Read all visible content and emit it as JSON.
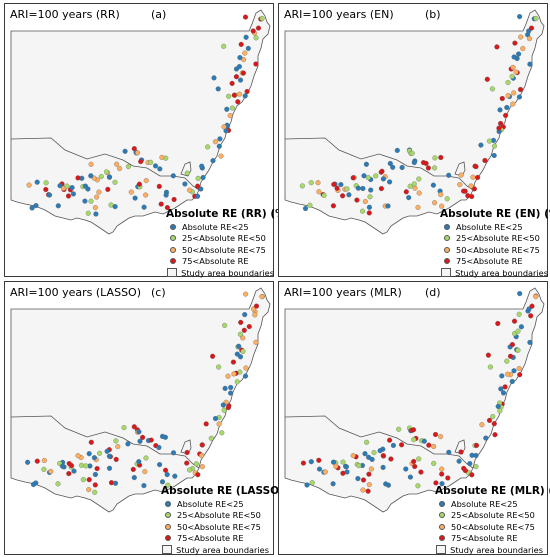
{
  "panels": [
    {
      "title": "ARI=100 years (RR)",
      "letter": "(a)",
      "legend_title": "Absolute RE (RR) (%)"
    },
    {
      "title": "ARI=100 years (EN)",
      "letter": "(b)",
      "legend_title": "Absolute RE (EN) (%)"
    },
    {
      "title": "ARI=100 years (LASSO)",
      "letter": "(c)",
      "legend_title": "Absolute RE (LASSO) (%)"
    },
    {
      "title": "ARI=100 years (MLR)",
      "letter": "(d)",
      "legend_title": "Absolute RE (MLR) (%)"
    }
  ],
  "legend": {
    "classes": [
      {
        "label": "Absolute RE<25",
        "color": "#2c7bb6"
      },
      {
        "label": "25<Absolute RE<50",
        "color": "#a6d96a"
      },
      {
        "label": "50<Absolute RE<75",
        "color": "#fdae61"
      },
      {
        "label": "75<Absolute RE",
        "color": "#d7191c"
      }
    ],
    "boundary_label": "Study area boundaries"
  },
  "colors": {
    "land": "#f5f5f5",
    "outline": "#555555"
  }
}
